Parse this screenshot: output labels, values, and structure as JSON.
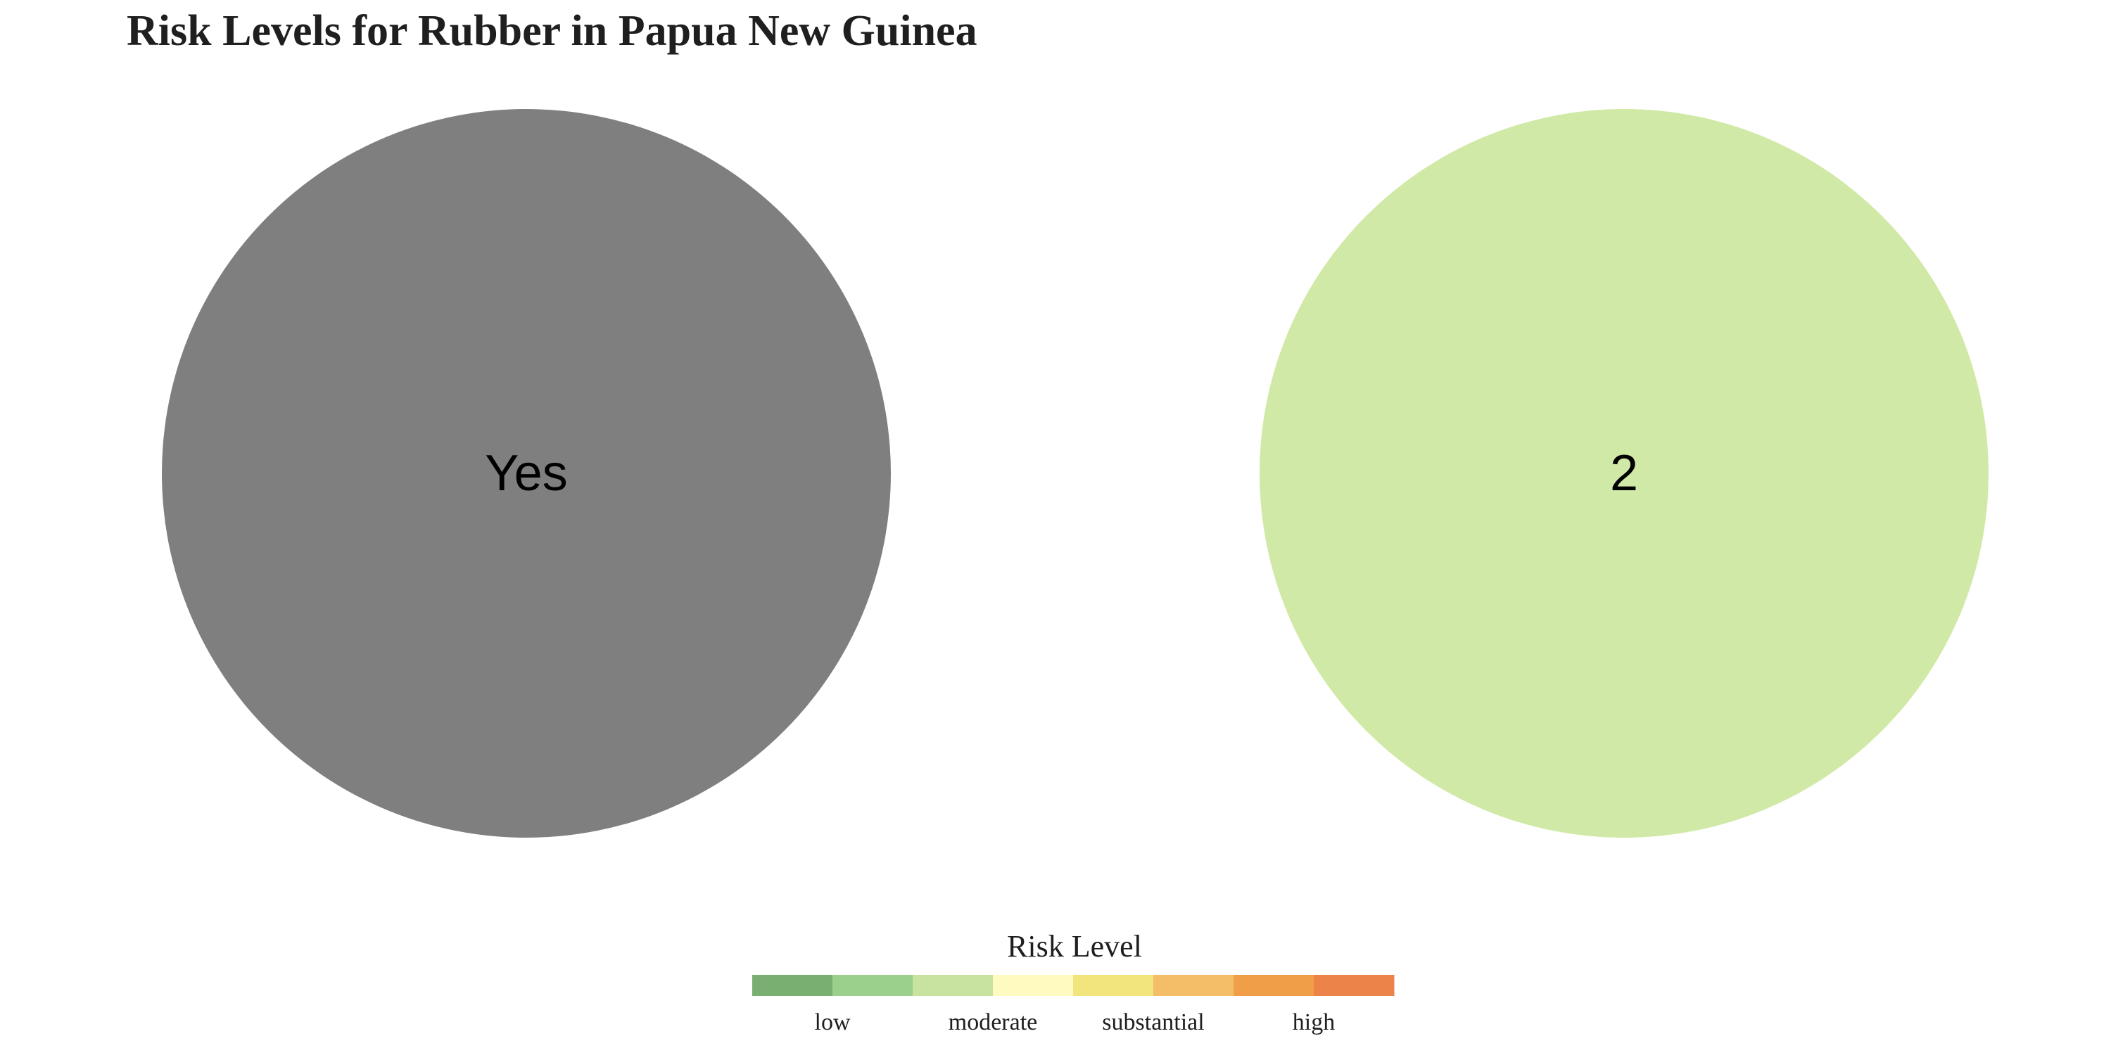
{
  "chart_data": {
    "type": "pie",
    "title": "Risk Levels for Rubber in Papua New Guinea",
    "panels": [
      {
        "label": "Yes",
        "value": 1,
        "color": "#7f7f7f"
      },
      {
        "label": "2",
        "value": 1,
        "color": "#d1e9a6"
      }
    ],
    "legend": {
      "title": "Risk Level",
      "placement": "bottom-center",
      "swatches": [
        "#7aaf72",
        "#9ad08c",
        "#c7e39f",
        "#fffbc0",
        "#f3e57d",
        "#f4bd68",
        "#f19e48",
        "#ec8349"
      ],
      "labels": [
        "low",
        "moderate",
        "substantial",
        "high"
      ]
    }
  }
}
